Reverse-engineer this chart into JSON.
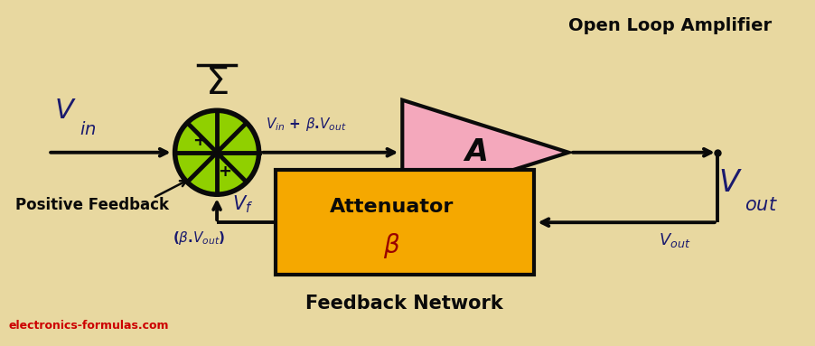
{
  "bg_color": "#e8d8a0",
  "fig_width": 9.02,
  "fig_height": 3.83,
  "dpi": 100,
  "text_color": "#1a1a6e",
  "black": "#0a0a0a",
  "summing_fill": "#90d000",
  "summing_stroke": "#0a0a0a",
  "amplifier_fill": "#f4a8bc",
  "amplifier_stroke": "#0a0a0a",
  "attenuator_fill": "#f5a800",
  "attenuator_stroke": "#0a0a0a",
  "beta_color": "#990000",
  "website_color": "#cc0000",
  "open_loop_label": "Open Loop Amplifier",
  "feedback_network_label": "Feedback Network",
  "website": "electronics-formulas.com"
}
